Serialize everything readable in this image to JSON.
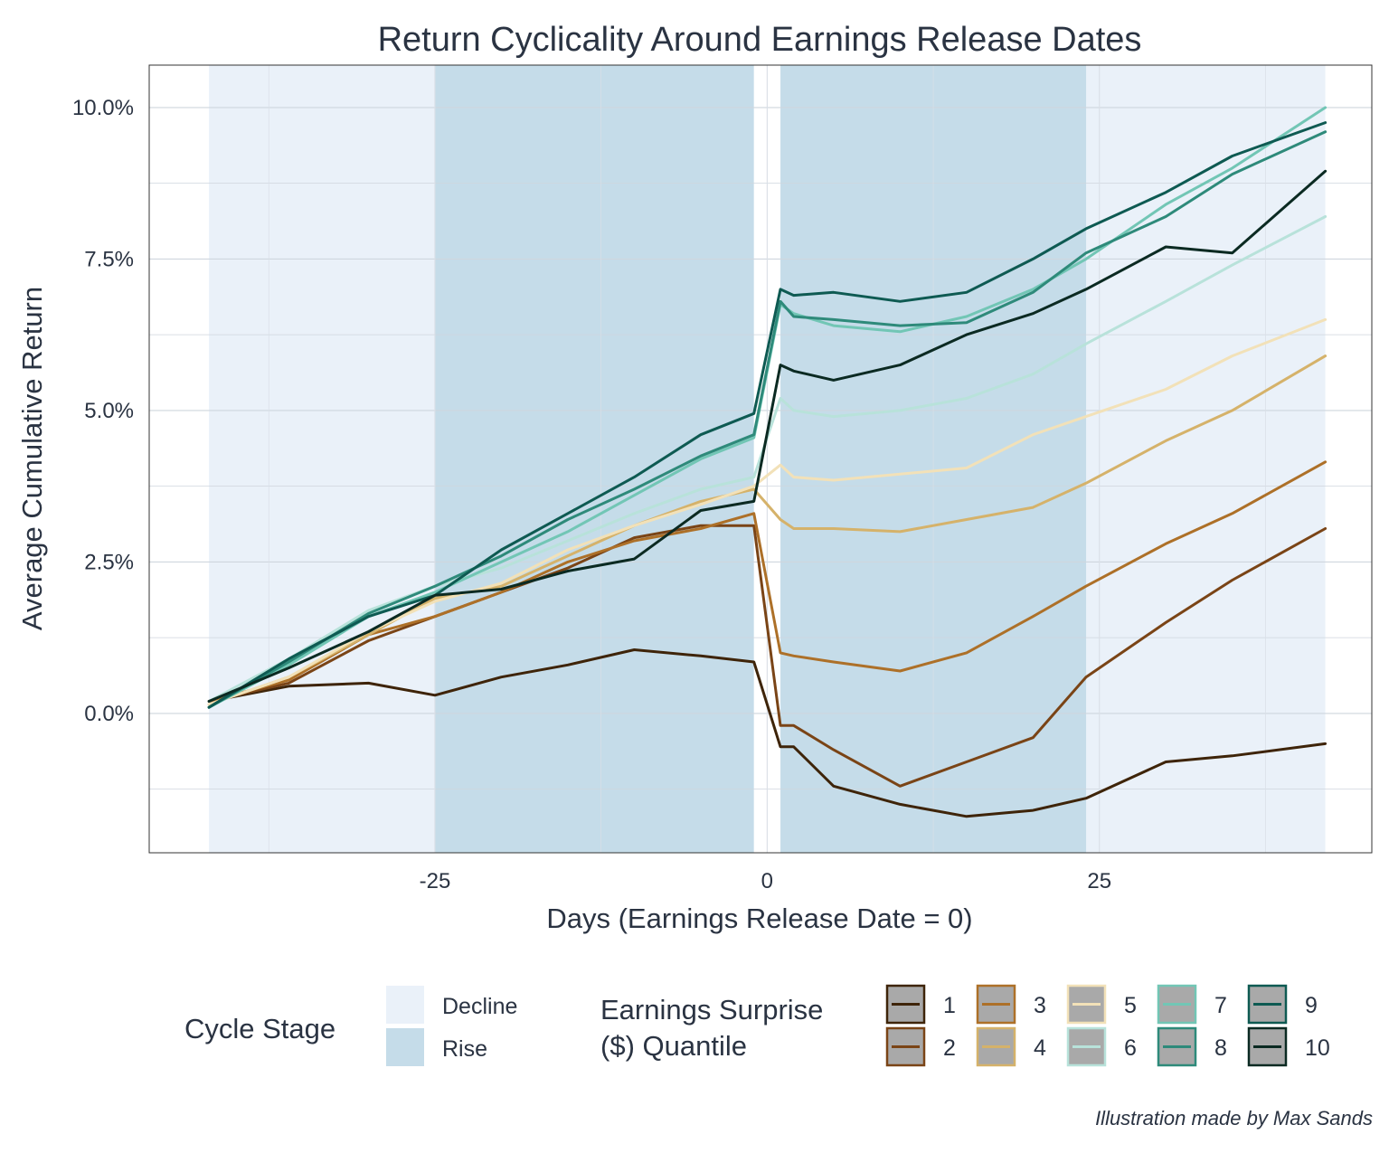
{
  "chart_data": {
    "type": "line",
    "title": "Return Cyclicality Around Earnings Release Dates",
    "xlabel": "Days (Earnings Release Date = 0)",
    "ylabel": "Average Cumulative Return",
    "xlim": [
      -46.5,
      45.5
    ],
    "ylim": [
      -2.3,
      10.7
    ],
    "x_ticks": [
      -25,
      0,
      25
    ],
    "x_tick_labels": [
      "-25",
      "0",
      "25"
    ],
    "y_ticks": [
      0,
      2.5,
      5,
      7.5,
      10
    ],
    "y_tick_labels": [
      "0.0%",
      "2.5%",
      "5.0%",
      "7.5%",
      "10.0%"
    ],
    "grid": true,
    "legend_position": "bottom",
    "cycle_stage_legend_title": "Cycle Stage",
    "series_legend_title": [
      "Earnings Surprise",
      "($) Quantile"
    ],
    "cycle_stages": [
      {
        "name": "Decline",
        "color": "#eaf1f9",
        "ranges": [
          [
            -42,
            -25
          ],
          [
            24,
            42
          ]
        ]
      },
      {
        "name": "Rise",
        "color": "#c5dce9",
        "ranges": [
          [
            -25,
            -1
          ],
          [
            1,
            24
          ]
        ]
      }
    ],
    "x": [
      -42,
      -36,
      -30,
      -25,
      -20,
      -15,
      -10,
      -5,
      -1,
      1,
      2,
      5,
      10,
      15,
      20,
      24,
      30,
      35,
      42
    ],
    "series": [
      {
        "name": "1",
        "color": "#3e2409",
        "values": [
          0.2,
          0.45,
          0.5,
          0.3,
          0.6,
          0.8,
          1.05,
          0.95,
          0.85,
          -0.55,
          -0.55,
          -1.2,
          -1.5,
          -1.7,
          -1.6,
          -1.4,
          -0.8,
          -0.7,
          -0.5
        ]
      },
      {
        "name": "2",
        "color": "#7a4416",
        "values": [
          0.2,
          0.5,
          1.2,
          1.6,
          2.0,
          2.4,
          2.9,
          3.1,
          3.1,
          -0.2,
          -0.2,
          -0.6,
          -1.2,
          -0.8,
          -0.4,
          0.6,
          1.5,
          2.2,
          3.05
        ]
      },
      {
        "name": "3",
        "color": "#ad7028",
        "values": [
          0.2,
          0.55,
          1.3,
          1.6,
          2.0,
          2.5,
          2.85,
          3.05,
          3.3,
          1.0,
          0.95,
          0.85,
          0.7,
          1.0,
          1.6,
          2.1,
          2.8,
          3.3,
          4.15
        ]
      },
      {
        "name": "4",
        "color": "#d5b26a",
        "values": [
          0.15,
          0.6,
          1.3,
          1.9,
          2.1,
          2.6,
          3.1,
          3.5,
          3.7,
          3.2,
          3.05,
          3.05,
          3.0,
          3.2,
          3.4,
          3.8,
          4.5,
          5.0,
          5.9
        ]
      },
      {
        "name": "5",
        "color": "#f2e1b8",
        "values": [
          0.15,
          0.6,
          1.35,
          1.85,
          2.15,
          2.7,
          3.1,
          3.45,
          3.75,
          4.1,
          3.9,
          3.85,
          3.95,
          4.05,
          4.6,
          4.9,
          5.35,
          5.9,
          6.5
        ]
      },
      {
        "name": "6",
        "color": "#b8e2da",
        "values": [
          0.2,
          0.9,
          1.7,
          2.1,
          2.4,
          2.85,
          3.3,
          3.7,
          3.9,
          5.2,
          5.0,
          4.9,
          5.0,
          5.2,
          5.6,
          6.1,
          6.8,
          7.4,
          8.2
        ]
      },
      {
        "name": "7",
        "color": "#72c6b5",
        "values": [
          0.1,
          0.8,
          1.6,
          2.0,
          2.5,
          3.0,
          3.6,
          4.2,
          4.55,
          6.75,
          6.6,
          6.4,
          6.3,
          6.55,
          7.0,
          7.5,
          8.4,
          9.0,
          10.0
        ]
      },
      {
        "name": "8",
        "color": "#2e8a7a",
        "values": [
          0.1,
          0.85,
          1.65,
          2.1,
          2.6,
          3.2,
          3.7,
          4.25,
          4.6,
          6.8,
          6.55,
          6.5,
          6.4,
          6.45,
          6.95,
          7.6,
          8.2,
          8.9,
          9.6
        ]
      },
      {
        "name": "9",
        "color": "#0e5a52",
        "values": [
          0.1,
          0.9,
          1.6,
          1.95,
          2.7,
          3.3,
          3.9,
          4.6,
          4.95,
          7.0,
          6.9,
          6.95,
          6.8,
          6.95,
          7.5,
          8.0,
          8.6,
          9.2,
          9.75
        ]
      },
      {
        "name": "10",
        "color": "#0b2a22",
        "values": [
          0.2,
          0.75,
          1.35,
          1.95,
          2.05,
          2.35,
          2.55,
          3.35,
          3.5,
          5.75,
          5.65,
          5.5,
          5.75,
          6.25,
          6.6,
          7.0,
          7.7,
          7.6,
          8.95
        ]
      }
    ]
  },
  "footer": {
    "caption": "Illustration made by Max Sands"
  }
}
